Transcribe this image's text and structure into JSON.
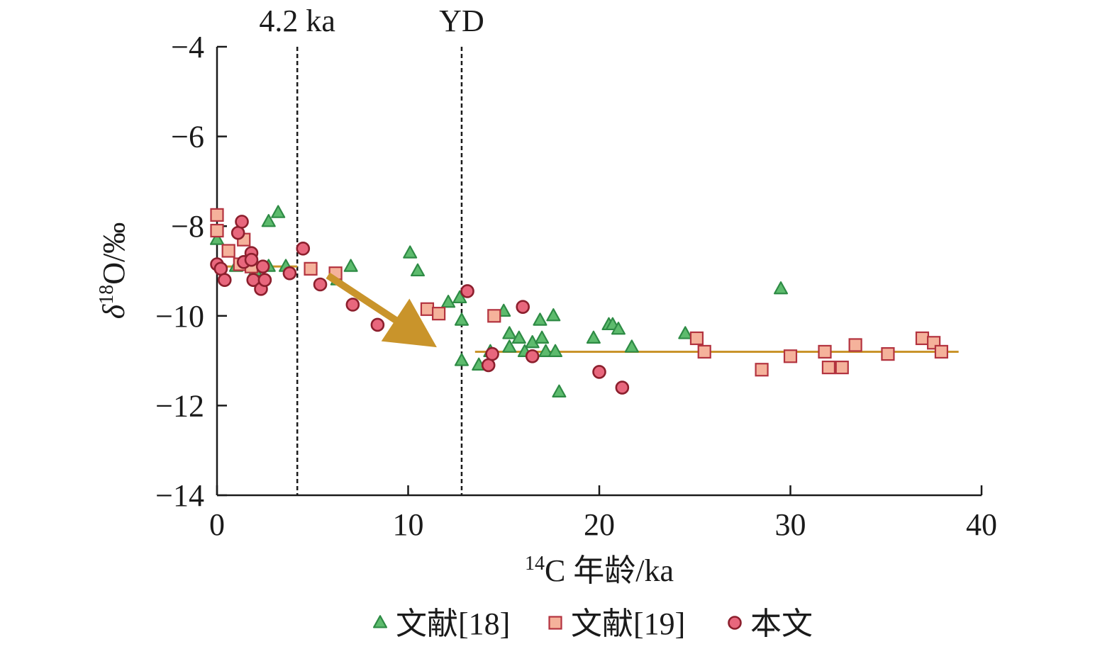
{
  "chart_data": {
    "type": "scatter",
    "xlabel_prefix": "14",
    "xlabel_main": "C 年龄/ka",
    "ylabel_delta": "δ",
    "ylabel_sup": "18",
    "ylabel_main": "O/‰",
    "xlim": [
      0,
      40
    ],
    "ylim": [
      -14,
      -4
    ],
    "xticks": [
      0,
      10,
      20,
      30,
      40
    ],
    "xtick_labels": [
      "0",
      "10",
      "20",
      "30",
      "40"
    ],
    "yticks": [
      -4,
      -6,
      -8,
      -10,
      -12,
      -14
    ],
    "ytick_labels": [
      "−4",
      "−6",
      "−8",
      "−10",
      "−12",
      "−14"
    ],
    "grid": false,
    "legend_position": "bottom",
    "annotations": [
      {
        "label": "4.2 ka",
        "x": 4.2,
        "style": "dashed-vertical"
      },
      {
        "label": "YD",
        "x": 12.8,
        "style": "dashed-vertical"
      }
    ],
    "arrow": {
      "from": [
        5.8,
        -9.1
      ],
      "to": [
        11.5,
        -10.7
      ],
      "color": "#C9942B"
    },
    "trend_lines": [
      {
        "x": [
          0.5,
          4.2
        ],
        "y": [
          -8.9,
          -8.9
        ],
        "color": "#C9942B"
      },
      {
        "x": [
          13.5,
          38.8
        ],
        "y": [
          -10.8,
          -10.8
        ],
        "color": "#C9942B"
      }
    ],
    "series": [
      {
        "name": "文献[18]",
        "marker": "triangle",
        "fill": "#5DBB6D",
        "stroke": "#2E8B45",
        "points": [
          [
            0.0,
            -8.3
          ],
          [
            1.0,
            -8.9
          ],
          [
            2.0,
            -9.0
          ],
          [
            2.7,
            -8.9
          ],
          [
            2.7,
            -7.9
          ],
          [
            3.2,
            -7.7
          ],
          [
            3.6,
            -8.9
          ],
          [
            6.3,
            -9.2
          ],
          [
            7.0,
            -8.9
          ],
          [
            10.1,
            -8.6
          ],
          [
            10.5,
            -9.0
          ],
          [
            12.1,
            -9.7
          ],
          [
            12.7,
            -9.6
          ],
          [
            12.8,
            -10.1
          ],
          [
            12.8,
            -11.0
          ],
          [
            13.7,
            -11.1
          ],
          [
            14.3,
            -10.8
          ],
          [
            15.0,
            -9.9
          ],
          [
            15.3,
            -10.4
          ],
          [
            15.3,
            -10.7
          ],
          [
            15.8,
            -10.5
          ],
          [
            16.1,
            -10.8
          ],
          [
            16.5,
            -10.6
          ],
          [
            16.9,
            -10.1
          ],
          [
            17.0,
            -10.5
          ],
          [
            17.2,
            -10.8
          ],
          [
            17.6,
            -10.0
          ],
          [
            17.7,
            -10.8
          ],
          [
            17.9,
            -11.7
          ],
          [
            19.7,
            -10.5
          ],
          [
            20.5,
            -10.2
          ],
          [
            20.7,
            -10.2
          ],
          [
            21.0,
            -10.3
          ],
          [
            21.7,
            -10.7
          ],
          [
            24.5,
            -10.4
          ],
          [
            29.5,
            -9.4
          ]
        ]
      },
      {
        "name": "文献[19]",
        "marker": "square",
        "fill": "#F5B29B",
        "stroke": "#B3333F",
        "points": [
          [
            0.0,
            -7.75
          ],
          [
            0.0,
            -8.1
          ],
          [
            0.6,
            -8.55
          ],
          [
            1.4,
            -8.3
          ],
          [
            1.2,
            -8.85
          ],
          [
            1.8,
            -8.9
          ],
          [
            4.9,
            -8.95
          ],
          [
            6.2,
            -9.05
          ],
          [
            11.0,
            -9.85
          ],
          [
            11.6,
            -9.95
          ],
          [
            14.5,
            -10.0
          ],
          [
            25.1,
            -10.5
          ],
          [
            25.5,
            -10.8
          ],
          [
            28.5,
            -11.2
          ],
          [
            30.0,
            -10.9
          ],
          [
            31.8,
            -10.8
          ],
          [
            32.0,
            -11.15
          ],
          [
            32.7,
            -11.15
          ],
          [
            33.4,
            -10.65
          ],
          [
            35.1,
            -10.85
          ],
          [
            36.9,
            -10.5
          ],
          [
            37.5,
            -10.6
          ],
          [
            37.9,
            -10.8
          ]
        ]
      },
      {
        "name": "本文",
        "marker": "circle",
        "fill": "#E8677D",
        "stroke": "#8C1F2D",
        "points": [
          [
            0.0,
            -8.85
          ],
          [
            0.2,
            -8.95
          ],
          [
            0.4,
            -9.2
          ],
          [
            1.1,
            -8.15
          ],
          [
            1.3,
            -7.9
          ],
          [
            1.4,
            -8.8
          ],
          [
            1.8,
            -8.6
          ],
          [
            1.8,
            -8.75
          ],
          [
            1.9,
            -9.2
          ],
          [
            2.3,
            -9.4
          ],
          [
            2.4,
            -8.9
          ],
          [
            2.5,
            -9.2
          ],
          [
            3.8,
            -9.05
          ],
          [
            4.5,
            -8.5
          ],
          [
            5.4,
            -9.3
          ],
          [
            7.1,
            -9.75
          ],
          [
            8.4,
            -10.2
          ],
          [
            13.1,
            -9.45
          ],
          [
            14.2,
            -11.1
          ],
          [
            14.4,
            -10.85
          ],
          [
            16.0,
            -9.8
          ],
          [
            16.5,
            -10.9
          ],
          [
            20.0,
            -11.25
          ],
          [
            21.2,
            -11.6
          ]
        ]
      }
    ]
  }
}
